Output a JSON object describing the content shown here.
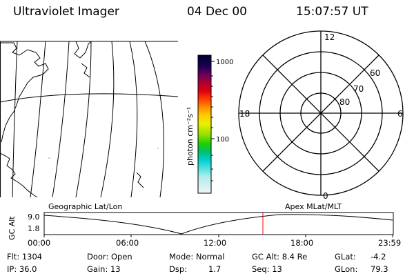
{
  "header": {
    "title": "Ultraviolet Imager",
    "date": "04 Dec 00",
    "time": "15:07:57 UT"
  },
  "colorbar": {
    "unit_label": "photon cm⁻²s⁻¹",
    "tick_labels": [
      "1000",
      "100"
    ],
    "scale": "log"
  },
  "polar": {
    "mlt_labels": {
      "top": "12",
      "left": "18",
      "right": "6",
      "bottom": "0"
    },
    "lat_labels": [
      "60",
      "70",
      "80"
    ]
  },
  "timeline": {
    "left_label": "Geographic Lat/Lon",
    "right_label": "Apex MLat/MLT",
    "y_axis_label": "GC Alt",
    "y_ticks": [
      "9.0",
      "1.8"
    ],
    "x_ticks": [
      "00:00",
      "06:00",
      "12:00",
      "18:00",
      "23:59"
    ],
    "current_time_marker_color": "#ff0000"
  },
  "footer": {
    "flt": "Flt: 1304",
    "ip": "IP: 36.0",
    "door": "Door: Open",
    "gain": "Gain: 13",
    "mode": "Mode: Normal",
    "dsp_label": "Dsp:",
    "dsp_value": "1.7",
    "gc_alt": "GC Alt: 8.4 Re",
    "seq": "Seq: 13",
    "glat_label": "GLat:",
    "glat_value": "-4.2",
    "glon_label": "GLon:",
    "glon_value": "79.3"
  }
}
